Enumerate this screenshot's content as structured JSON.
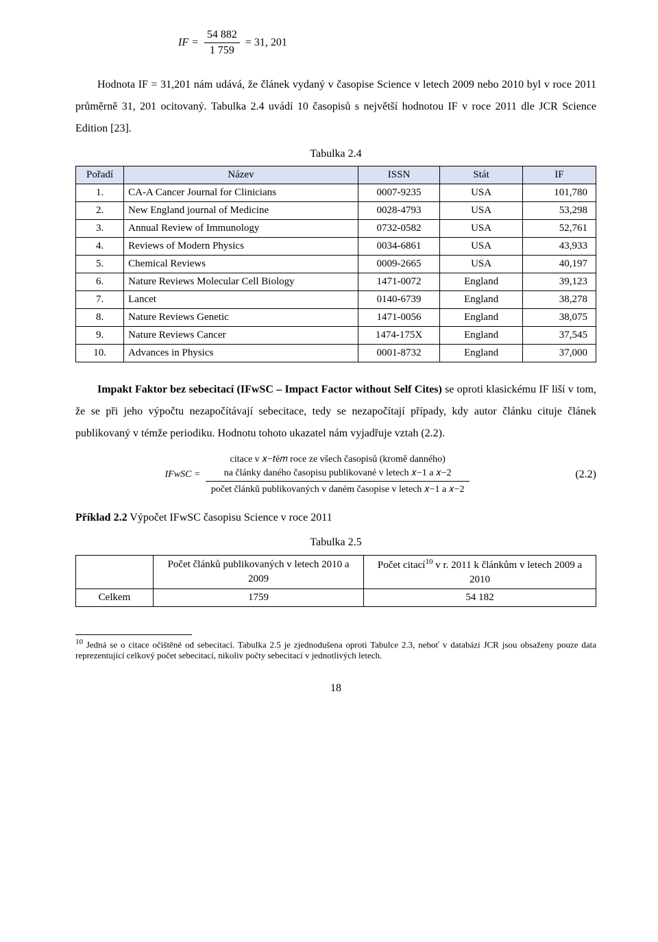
{
  "formula1": {
    "lhs": "IF =",
    "num": "54 882",
    "den": "1 759",
    "rhs": "= 31, 201"
  },
  "para1": "Hodnota IF = 31,201 nám udává, že článek vydaný v časopise Science v letech 2009 nebo 2010 byl v roce 2011 průměrně 31, 201 ocitovaný. Tabulka 2.4 uvádí 10 časopisů s největší hodnotou IF v roce 2011 dle JCR Science Edition [23].",
  "table24": {
    "caption": "Tabulka 2.4",
    "headers": [
      "Pořadí",
      "Název",
      "ISSN",
      "Stát",
      "IF"
    ],
    "header_bg": "#d9e1f2",
    "rows": [
      [
        "1.",
        "CA-A Cancer Journal for Clinicians",
        "0007-9235",
        "USA",
        "101,780"
      ],
      [
        "2.",
        "New England journal of Medicine",
        "0028-4793",
        "USA",
        "53,298"
      ],
      [
        "3.",
        "Annual Review of Immunology",
        "0732-0582",
        "USA",
        "52,761"
      ],
      [
        "4.",
        "Reviews of Modern Physics",
        "0034-6861",
        "USA",
        "43,933"
      ],
      [
        "5.",
        "Chemical Reviews",
        "0009-2665",
        "USA",
        "40,197"
      ],
      [
        "6.",
        "Nature Reviews Molecular Cell Biology",
        "1471-0072",
        "England",
        "39,123"
      ],
      [
        "7.",
        "Lancet",
        "0140-6739",
        "England",
        "38,278"
      ],
      [
        "8.",
        "Nature Reviews Genetic",
        "1471-0056",
        "England",
        "38,075"
      ],
      [
        "9.",
        "Nature Reviews Cancer",
        "1474-175X",
        "England",
        "37,545"
      ],
      [
        "10.",
        "Advances in Physics",
        "0001-8732",
        "England",
        "37,000"
      ]
    ]
  },
  "para2_bold": "Impakt Faktor bez sebecitací (IFwSC – Impact Factor without Self Cites)",
  "para2_rest": " se oproti klasickému IF liší v tom, že se při jeho výpočtu nezapočítávají sebecitace, tedy se nezapočítají případy, kdy autor článku cituje článek publikovaný v témže periodiku. Hodnotu tohoto ukazatel nám vyjadřuje vztah (2.2).",
  "formula2": {
    "lhs": "IFwSC =",
    "top1": "citace v 𝑥−𝑡é𝑚 roce ze všech časopisů (kromě danného)",
    "top2": "na články daného časopisu publikované v letech 𝑥−1 a 𝑥−2",
    "bot": "počet článků publikovaných v daném časopise v letech 𝑥−1 a 𝑥−2",
    "eqnum": "(2.2)"
  },
  "example_label_bold": "Příklad 2.2",
  "example_rest": " Výpočet IFwSC časopisu Science v roce 2011",
  "table25": {
    "caption": "Tabulka 2.5",
    "head1": "Počet článků publikovaných v letech 2010 a 2009",
    "head2_a": "Počet citací",
    "head2_sup": "10",
    "head2_b": " v r. 2011 k článkům v letech 2009 a 2010",
    "row_label": "Celkem",
    "row_v1": "1759",
    "row_v2": "54 182"
  },
  "footnote": {
    "sup": "10",
    "text": " Jedná se o citace očištěné od sebecitací. Tabulka 2.5 je zjednodušena oproti Tabulce 2.3, neboť v databázi JCR jsou obsaženy pouze data reprezentující celkový počet sebecitací, nikoliv počty sebecitací v jednotlivých letech."
  },
  "page_number": "18"
}
